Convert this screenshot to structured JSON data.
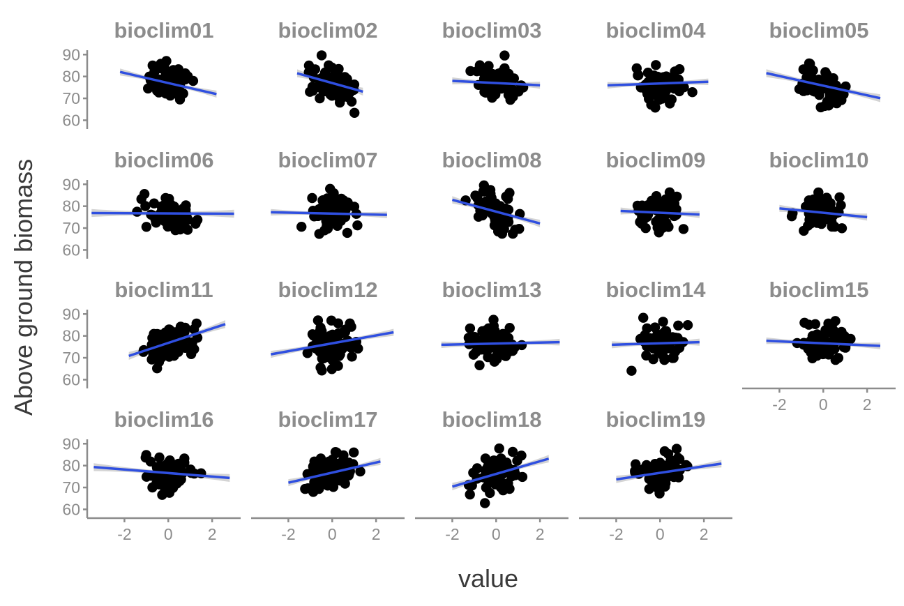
{
  "chart_data": {
    "type": "scatter",
    "facet_by": "variable",
    "facet_layout": {
      "ncol": 5,
      "nrow": 4
    },
    "xlabel": "value",
    "ylabel": "Above ground biomass",
    "x_ticks": [
      -2,
      0,
      2
    ],
    "y_ticks": [
      60,
      70,
      80,
      90
    ],
    "xlim": [
      -3.7,
      3.3
    ],
    "ylim": [
      56,
      92
    ],
    "smoother": "lm",
    "colors": {
      "points": "#000000",
      "fit_line": "#2f4fe0",
      "confidence_band": "#bdbdbd",
      "strip_text": "#8c8c8c"
    },
    "panels": [
      {
        "name": "bioclim01",
        "x_range": [
          -2.2,
          2.2
        ],
        "fit": {
          "intercept": 77.0,
          "slope": -2.3
        },
        "band_half_width": 1.6
      },
      {
        "name": "bioclim02",
        "x_range": [
          -1.6,
          1.4
        ],
        "fit": {
          "intercept": 77.0,
          "slope": -2.8
        },
        "band_half_width": 1.8
      },
      {
        "name": "bioclim03",
        "x_range": [
          -2.0,
          2.0
        ],
        "fit": {
          "intercept": 77.0,
          "slope": -0.5
        },
        "band_half_width": 1.6
      },
      {
        "name": "bioclim04",
        "x_range": [
          -2.4,
          2.2
        ],
        "fit": {
          "intercept": 76.8,
          "slope": 0.35
        },
        "band_half_width": 1.5
      },
      {
        "name": "bioclim05",
        "x_range": [
          -2.6,
          2.6
        ],
        "fit": {
          "intercept": 75.8,
          "slope": -2.2
        },
        "band_half_width": 1.8
      },
      {
        "name": "bioclim06",
        "x_range": [
          -3.5,
          3.0
        ],
        "fit": {
          "intercept": 76.7,
          "slope": -0.05
        },
        "band_half_width": 1.8
      },
      {
        "name": "bioclim07",
        "x_range": [
          -2.8,
          2.5
        ],
        "fit": {
          "intercept": 76.6,
          "slope": -0.22
        },
        "band_half_width": 1.5
      },
      {
        "name": "bioclim08",
        "x_range": [
          -2.0,
          2.0
        ],
        "fit": {
          "intercept": 77.5,
          "slope": -2.7
        },
        "band_half_width": 1.7
      },
      {
        "name": "bioclim09",
        "x_range": [
          -1.8,
          1.8
        ],
        "fit": {
          "intercept": 77.0,
          "slope": -0.45
        },
        "band_half_width": 1.6
      },
      {
        "name": "bioclim10",
        "x_range": [
          -2.0,
          2.0
        ],
        "fit": {
          "intercept": 77.0,
          "slope": -1.0
        },
        "band_half_width": 1.6
      },
      {
        "name": "bioclim11",
        "x_range": [
          -1.8,
          2.6
        ],
        "fit": {
          "intercept": 76.8,
          "slope": 3.3
        },
        "band_half_width": 1.8
      },
      {
        "name": "bioclim12",
        "x_range": [
          -2.8,
          2.8
        ],
        "fit": {
          "intercept": 76.6,
          "slope": 1.8
        },
        "band_half_width": 1.6
      },
      {
        "name": "bioclim13",
        "x_range": [
          -2.5,
          2.9
        ],
        "fit": {
          "intercept": 76.5,
          "slope": 0.22
        },
        "band_half_width": 1.5
      },
      {
        "name": "bioclim14",
        "x_range": [
          -2.2,
          1.8
        ],
        "fit": {
          "intercept": 76.6,
          "slope": 0.3
        },
        "band_half_width": 1.6
      },
      {
        "name": "bioclim15",
        "x_range": [
          -2.6,
          2.6
        ],
        "fit": {
          "intercept": 76.6,
          "slope": -0.45
        },
        "band_half_width": 1.5
      },
      {
        "name": "bioclim16",
        "x_range": [
          -3.4,
          2.8
        ],
        "fit": {
          "intercept": 76.6,
          "slope": -0.8
        },
        "band_half_width": 1.8
      },
      {
        "name": "bioclim17",
        "x_range": [
          -2.0,
          2.2
        ],
        "fit": {
          "intercept": 76.8,
          "slope": 2.3
        },
        "band_half_width": 1.6
      },
      {
        "name": "bioclim18",
        "x_range": [
          -2.0,
          2.4
        ],
        "fit": {
          "intercept": 76.2,
          "slope": 2.9
        },
        "band_half_width": 1.7
      },
      {
        "name": "bioclim19",
        "x_range": [
          -2.0,
          2.8
        ],
        "fit": {
          "intercept": 76.7,
          "slope": 1.5
        },
        "band_half_width": 1.7
      }
    ]
  }
}
